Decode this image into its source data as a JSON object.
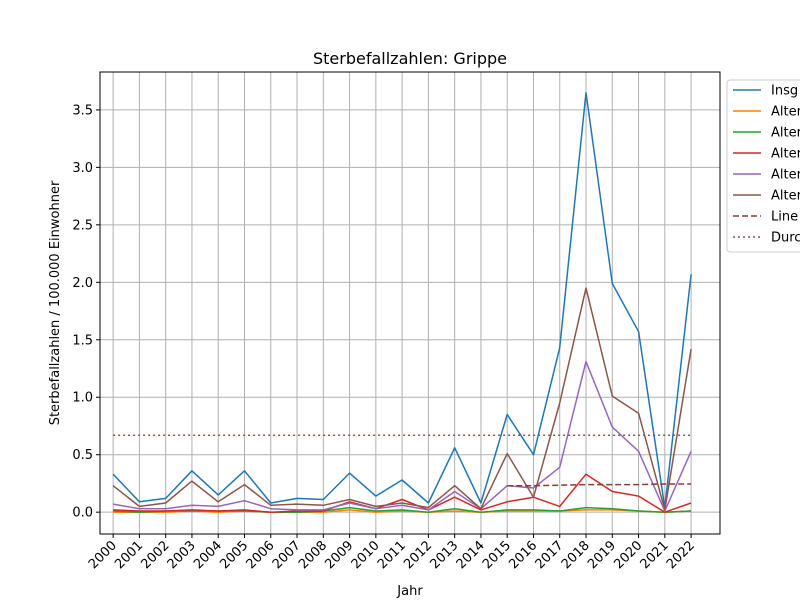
{
  "chart_data": {
    "type": "line",
    "title": "Sterbefallzahlen: Grippe",
    "xlabel": "Jahr",
    "ylabel": "Sterbefallzahlen / 100.000 Einwohner",
    "x": [
      "2000",
      "2001",
      "2002",
      "2003",
      "2004",
      "2005",
      "2006",
      "2007",
      "2008",
      "2009",
      "2010",
      "2011",
      "2012",
      "2013",
      "2014",
      "2015",
      "2016",
      "2017",
      "2018",
      "2019",
      "2020",
      "2021",
      "2022"
    ],
    "xlim": [
      1999.5,
      2023.1
    ],
    "ylim": [
      -0.19,
      3.83
    ],
    "yticks": [
      "0.0",
      "0.5",
      "1.0",
      "1.5",
      "2.0",
      "2.5",
      "3.0",
      "3.5"
    ],
    "ytick_values": [
      0,
      0.5,
      1.0,
      1.5,
      2.0,
      2.5,
      3.0,
      3.5
    ],
    "grid": true,
    "legend_position": "outside-top-right",
    "series": [
      {
        "name": "Insg",
        "color": "#1f77b4",
        "style": "solid",
        "values": [
          0.33,
          0.09,
          0.12,
          0.36,
          0.15,
          0.36,
          0.08,
          0.12,
          0.11,
          0.34,
          0.14,
          0.28,
          0.08,
          0.56,
          0.08,
          0.85,
          0.5,
          1.43,
          3.65,
          1.99,
          1.57,
          0.04,
          2.07
        ]
      },
      {
        "name": "Alter",
        "color": "#ff7f0e",
        "style": "solid",
        "values": [
          0.0,
          0.0,
          0.0,
          0.01,
          0.0,
          0.01,
          0.0,
          0.0,
          0.0,
          0.02,
          0.0,
          0.01,
          0.0,
          0.01,
          0.0,
          0.01,
          0.01,
          0.01,
          0.02,
          0.02,
          0.01,
          0.0,
          0.01
        ]
      },
      {
        "name": "Alter",
        "color": "#2ca02c",
        "style": "solid",
        "values": [
          0.01,
          0.0,
          0.01,
          0.01,
          0.01,
          0.01,
          0.0,
          0.0,
          0.01,
          0.04,
          0.01,
          0.02,
          0.0,
          0.03,
          0.0,
          0.02,
          0.02,
          0.01,
          0.04,
          0.03,
          0.01,
          0.0,
          0.01
        ]
      },
      {
        "name": "Alter",
        "color": "#d62728",
        "style": "solid",
        "values": [
          0.02,
          0.01,
          0.01,
          0.02,
          0.01,
          0.02,
          0.0,
          0.01,
          0.01,
          0.09,
          0.03,
          0.11,
          0.02,
          0.13,
          0.02,
          0.09,
          0.13,
          0.05,
          0.33,
          0.18,
          0.14,
          0.0,
          0.08
        ]
      },
      {
        "name": "Alter",
        "color": "#9467bd",
        "style": "solid",
        "values": [
          0.07,
          0.03,
          0.03,
          0.06,
          0.05,
          0.1,
          0.03,
          0.02,
          0.02,
          0.08,
          0.03,
          0.06,
          0.02,
          0.18,
          0.03,
          0.23,
          0.21,
          0.39,
          1.31,
          0.74,
          0.53,
          0.01,
          0.53
        ]
      },
      {
        "name": "Alter",
        "color": "#8c564b",
        "style": "solid",
        "values": [
          0.23,
          0.05,
          0.08,
          0.27,
          0.09,
          0.24,
          0.06,
          0.07,
          0.06,
          0.11,
          0.05,
          0.08,
          0.04,
          0.23,
          0.03,
          0.51,
          0.13,
          0.95,
          1.95,
          1.01,
          0.86,
          0.02,
          1.42
        ]
      },
      {
        "name": "Line",
        "color": "#8c3a3a",
        "style": "dashed",
        "values": [
          null,
          null,
          null,
          null,
          null,
          null,
          null,
          null,
          null,
          null,
          null,
          null,
          null,
          null,
          null,
          0.23,
          0.23,
          0.235,
          0.24,
          0.24,
          0.24,
          0.245,
          0.245
        ]
      },
      {
        "name": "Durc",
        "color": "#8c564b",
        "style": "dotted",
        "values": [
          0.67,
          0.67,
          0.67,
          0.67,
          0.67,
          0.67,
          0.67,
          0.67,
          0.67,
          0.67,
          0.67,
          0.67,
          0.67,
          0.67,
          0.67,
          0.67,
          0.67,
          0.67,
          0.67,
          0.67,
          0.67,
          0.67,
          0.67
        ]
      }
    ]
  }
}
